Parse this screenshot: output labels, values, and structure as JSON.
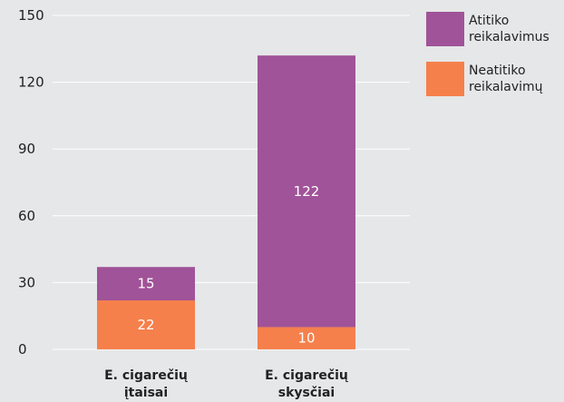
{
  "chart_data": {
    "type": "bar",
    "stacked": true,
    "categories": [
      [
        "E. cigarečių",
        "įtaisai"
      ],
      [
        "E. cigarečių",
        "skysčiai"
      ]
    ],
    "series": [
      {
        "name": "Neatitiko reikalavimų",
        "legend_lines": [
          "Neatitiko",
          "reikalavimų"
        ],
        "values": [
          22,
          10
        ],
        "color": "#f5804c"
      },
      {
        "name": "Atitiko reikalavimus",
        "legend_lines": [
          "Atitiko",
          "reikalavimus"
        ],
        "values": [
          15,
          122
        ],
        "color": "#a05398"
      }
    ],
    "yticks": [
      0,
      30,
      60,
      90,
      120,
      150
    ],
    "ylim": [
      0,
      150
    ],
    "grid": true,
    "legend_position": "top-right",
    "legend_order": [
      1,
      0
    ]
  }
}
